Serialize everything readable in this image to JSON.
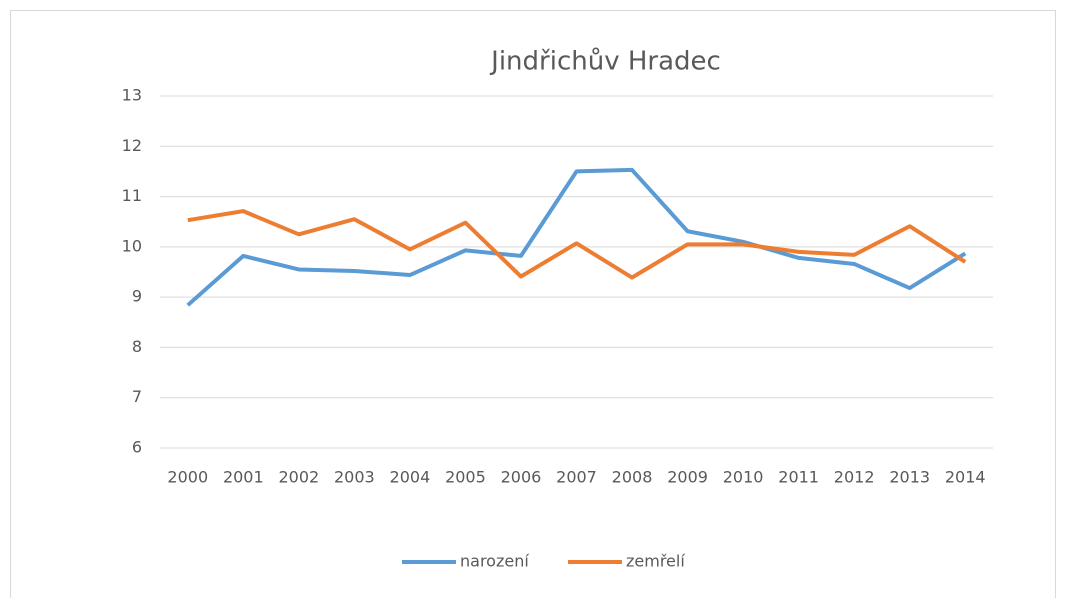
{
  "chart_data": {
    "type": "line",
    "title": "Jindřichův Hradec",
    "categories": [
      "2000",
      "2001",
      "2002",
      "2003",
      "2004",
      "2005",
      "2006",
      "2007",
      "2008",
      "2009",
      "2010",
      "2011",
      "2012",
      "2013",
      "2014"
    ],
    "series": [
      {
        "name": "narození",
        "color": "#5b9bd5",
        "values": [
          8.84,
          9.82,
          9.55,
          9.52,
          9.44,
          9.93,
          9.82,
          11.5,
          11.53,
          10.31,
          10.1,
          9.78,
          9.66,
          9.18,
          9.87
        ]
      },
      {
        "name": "zemřelí",
        "color": "#ed7d31",
        "values": [
          10.53,
          10.71,
          10.25,
          10.55,
          9.95,
          10.48,
          9.41,
          10.07,
          9.39,
          10.05,
          10.05,
          9.9,
          9.84,
          10.41,
          9.7
        ]
      }
    ],
    "ylim": [
      6,
      13
    ],
    "yticks": [
      6,
      7,
      8,
      9,
      10,
      11,
      12,
      13
    ],
    "grid": true,
    "legend": "bottom"
  }
}
